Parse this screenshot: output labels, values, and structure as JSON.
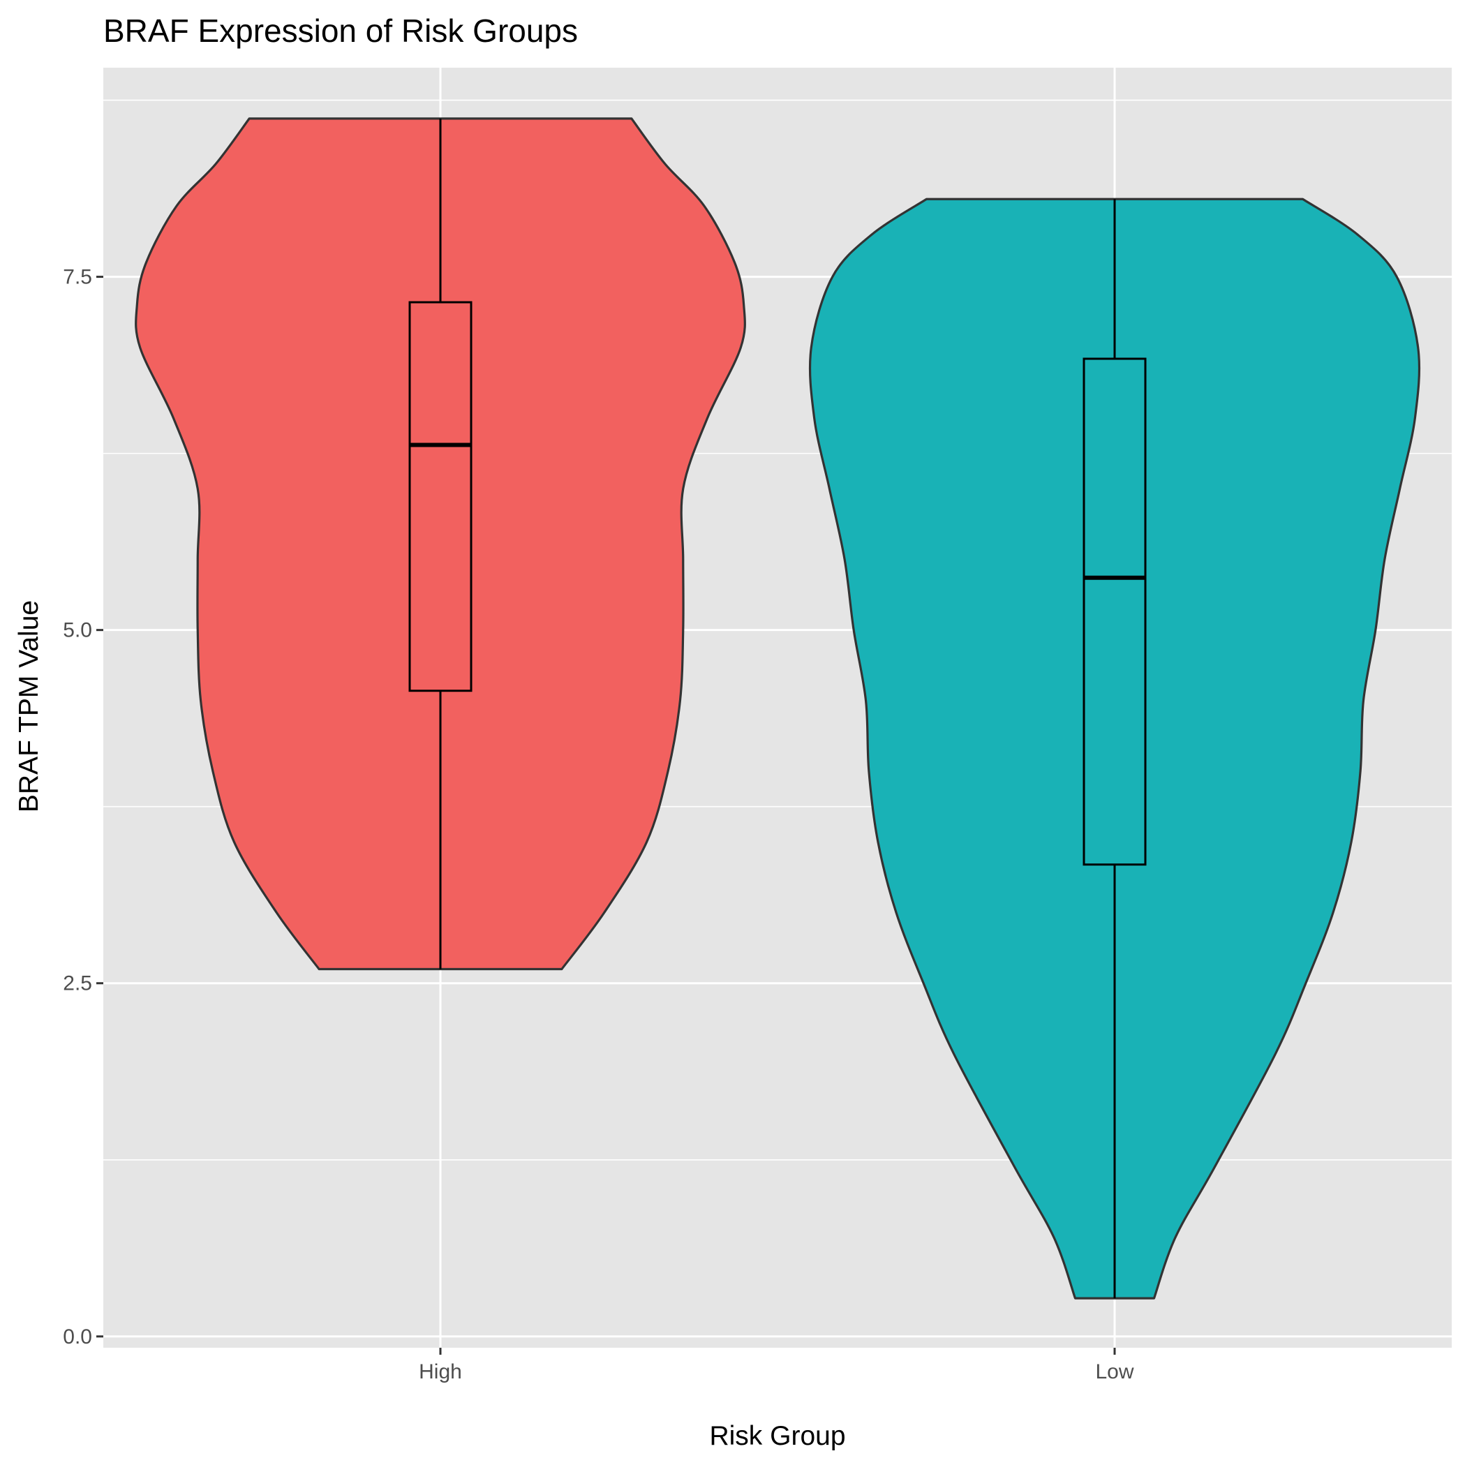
{
  "chart_data": {
    "type": "violin",
    "title": "BRAF Expression of Risk Groups",
    "xlabel": "Risk Group",
    "ylabel": "BRAF TPM Value",
    "categories": [
      "High",
      "Low"
    ],
    "ylim": [
      -0.08,
      8.98
    ],
    "yticks": [
      0.0,
      2.5,
      5.0,
      7.5
    ],
    "ytick_labels": [
      "0.0",
      "2.5",
      "5.0",
      "7.5"
    ],
    "grid": true,
    "legend": "none",
    "panel_background": "#E5E5E5",
    "grid_color": "#FFFFFF",
    "series": [
      {
        "category": "High",
        "color": "#F2615F",
        "min": 2.6,
        "q1": 4.57,
        "median": 6.31,
        "q3": 7.32,
        "max": 8.62,
        "density_profile": [
          [
            2.6,
            0.4
          ],
          [
            3.0,
            0.54
          ],
          [
            3.5,
            0.68
          ],
          [
            4.0,
            0.75
          ],
          [
            4.5,
            0.79
          ],
          [
            5.0,
            0.8
          ],
          [
            5.5,
            0.8
          ],
          [
            6.0,
            0.8
          ],
          [
            6.5,
            0.88
          ],
          [
            7.0,
            0.99
          ],
          [
            7.3,
            1.0
          ],
          [
            7.6,
            0.97
          ],
          [
            8.0,
            0.87
          ],
          [
            8.3,
            0.74
          ],
          [
            8.62,
            0.63
          ]
        ]
      },
      {
        "category": "Low",
        "color": "#19B2B6",
        "min": 0.27,
        "q1": 3.34,
        "median": 5.37,
        "q3": 6.92,
        "max": 8.05,
        "density_profile": [
          [
            0.27,
            0.13
          ],
          [
            0.7,
            0.2
          ],
          [
            1.2,
            0.33
          ],
          [
            2.0,
            0.53
          ],
          [
            2.5,
            0.63
          ],
          [
            3.0,
            0.72
          ],
          [
            3.5,
            0.78
          ],
          [
            4.0,
            0.81
          ],
          [
            4.5,
            0.82
          ],
          [
            5.0,
            0.86
          ],
          [
            5.5,
            0.89
          ],
          [
            6.0,
            0.94
          ],
          [
            6.5,
            0.99
          ],
          [
            7.0,
            1.0
          ],
          [
            7.5,
            0.93
          ],
          [
            7.8,
            0.8
          ],
          [
            8.05,
            0.62
          ]
        ]
      }
    ]
  }
}
